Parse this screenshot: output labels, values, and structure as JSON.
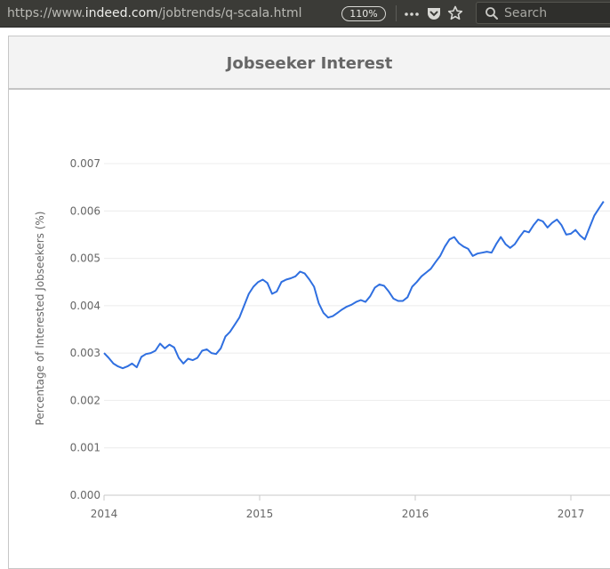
{
  "browser": {
    "url_prefix": "https://www.",
    "url_host": "indeed.com",
    "url_path": "/jobtrends/q-scala.html",
    "zoom": "110%",
    "search_placeholder": "Search",
    "icons": [
      "more-icon",
      "pocket-icon",
      "bookmark-star-icon",
      "search-icon"
    ]
  },
  "panel": {
    "title": "Jobseeker Interest"
  },
  "chart_data": {
    "type": "line",
    "title": "Jobseeker Interest",
    "xlabel": "",
    "ylabel": "Percentage of Interested Jobseekers (%)",
    "ylim": [
      0,
      0.007
    ],
    "yticks": [
      "0.000",
      "0.001",
      "0.002",
      "0.003",
      "0.004",
      "0.005",
      "0.006",
      "0.007"
    ],
    "xticks": [
      "2014",
      "2015",
      "2016",
      "2017"
    ],
    "grid": true,
    "color": "#2f6fe0",
    "series": [
      {
        "x": [
          2014.0,
          2014.03,
          2014.06,
          2014.09,
          2014.12,
          2014.15,
          2014.18,
          2014.21,
          2014.24,
          2014.27,
          2014.3,
          2014.33,
          2014.36,
          2014.39,
          2014.42,
          2014.45,
          2014.48,
          2014.51,
          2014.54,
          2014.57,
          2014.6,
          2014.63,
          2014.66,
          2014.69,
          2014.72,
          2014.75,
          2014.78,
          2014.81,
          2014.84,
          2014.87,
          2014.9,
          2014.93,
          2014.96,
          2014.99,
          2015.02,
          2015.05,
          2015.08,
          2015.11,
          2015.14,
          2015.17,
          2015.2,
          2015.23,
          2015.26,
          2015.29,
          2015.32,
          2015.35,
          2015.38,
          2015.41,
          2015.44,
          2015.47,
          2015.5,
          2015.53,
          2015.56,
          2015.59,
          2015.62,
          2015.65,
          2015.68,
          2015.71,
          2015.74,
          2015.77,
          2015.8,
          2015.83,
          2015.86,
          2015.89,
          2015.92,
          2015.95,
          2015.98,
          2016.01,
          2016.04,
          2016.07,
          2016.1,
          2016.13,
          2016.16,
          2016.19,
          2016.22,
          2016.25,
          2016.28,
          2016.31,
          2016.34,
          2016.37,
          2016.4,
          2016.43,
          2016.46,
          2016.49,
          2016.52,
          2016.55,
          2016.58,
          2016.61,
          2016.64,
          2016.67,
          2016.7,
          2016.73,
          2016.76,
          2016.79,
          2016.82,
          2016.85,
          2016.88,
          2016.91,
          2016.94,
          2016.97,
          2017.0,
          2017.03,
          2017.06,
          2017.09,
          2017.12,
          2017.15,
          2017.18,
          2017.21
        ],
        "y": [
          0.003,
          0.0029,
          0.00278,
          0.00272,
          0.00268,
          0.00272,
          0.00278,
          0.0027,
          0.00292,
          0.00298,
          0.003,
          0.00305,
          0.0032,
          0.0031,
          0.00318,
          0.00312,
          0.0029,
          0.00278,
          0.00288,
          0.00285,
          0.0029,
          0.00305,
          0.00308,
          0.003,
          0.00298,
          0.0031,
          0.00335,
          0.00345,
          0.0036,
          0.00375,
          0.004,
          0.00425,
          0.0044,
          0.0045,
          0.00455,
          0.00448,
          0.00425,
          0.0043,
          0.0045,
          0.00455,
          0.00458,
          0.00462,
          0.00472,
          0.00468,
          0.00455,
          0.0044,
          0.00405,
          0.00385,
          0.00375,
          0.00378,
          0.00385,
          0.00392,
          0.00398,
          0.00402,
          0.00408,
          0.00412,
          0.00408,
          0.0042,
          0.00438,
          0.00445,
          0.00442,
          0.0043,
          0.00415,
          0.0041,
          0.0041,
          0.00418,
          0.0044,
          0.0045,
          0.00462,
          0.0047,
          0.00478,
          0.00492,
          0.00505,
          0.00525,
          0.0054,
          0.00545,
          0.00532,
          0.00525,
          0.0052,
          0.00505,
          0.0051,
          0.00512,
          0.00514,
          0.00512,
          0.0053,
          0.00545,
          0.0053,
          0.00522,
          0.0053,
          0.00545,
          0.00558,
          0.00555,
          0.0057,
          0.00582,
          0.00578,
          0.00565,
          0.00575,
          0.00582,
          0.0057,
          0.0055,
          0.00552,
          0.0056,
          0.00548,
          0.0054,
          0.00565,
          0.0059,
          0.00605,
          0.0062
        ]
      }
    ]
  }
}
